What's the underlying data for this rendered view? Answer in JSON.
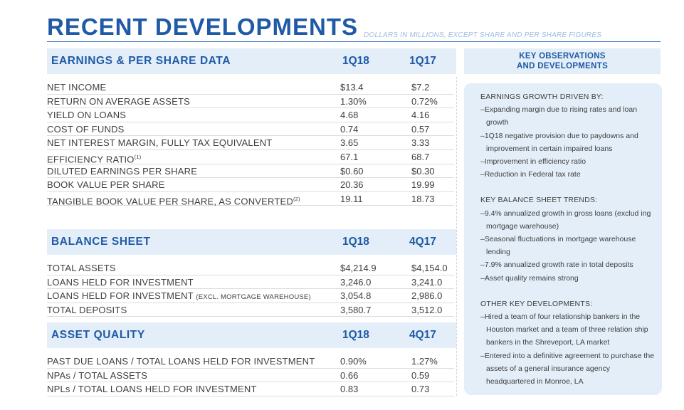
{
  "header": {
    "title": "RECENT DEVELOPMENTS",
    "subtitle": "DOLLARS IN MILLIONS, EXCEPT SHARE AND PER SHARE FIGURES"
  },
  "earnings": {
    "title": "EARNINGS & PER SHARE DATA",
    "col_a": "1Q18",
    "col_b": "1Q17",
    "rows": [
      {
        "label": "NET INCOME",
        "a": "$13.4",
        "b": "$7.2"
      },
      {
        "label": "RETURN ON AVERAGE ASSETS",
        "a": "1.30%",
        "b": "0.72%"
      },
      {
        "label": "YIELD ON LOANS",
        "a": "4.68",
        "b": "4.16"
      },
      {
        "label": "COST OF FUNDS",
        "a": "0.74",
        "b": "0.57"
      },
      {
        "label": "NET INTEREST MARGIN, FULLY TAX EQUIVALENT",
        "a": "3.65",
        "b": "3.33"
      },
      {
        "label": "EFFICIENCY RATIO",
        "sup": "(1)",
        "a": "67.1",
        "b": "68.7"
      },
      {
        "label": "DILUTED EARNINGS PER SHARE",
        "a": "$0.60",
        "b": "$0.30"
      },
      {
        "label": "BOOK VALUE PER SHARE",
        "a": "20.36",
        "b": "19.99"
      },
      {
        "label": "TANGIBLE BOOK VALUE PER SHARE, AS CONVERTED",
        "sup": "(2)",
        "a": "19.11",
        "b": "18.73"
      }
    ]
  },
  "balance": {
    "title": "BALANCE SHEET",
    "col_a": "1Q18",
    "col_b": "4Q17",
    "rows": [
      {
        "label": "TOTAL ASSETS",
        "a": "$4,214.9",
        "b": "$4,154.0"
      },
      {
        "label": "LOANS HELD FOR INVESTMENT",
        "a": "3,246.0",
        "b": "3,241.0"
      },
      {
        "label": "LOANS HELD FOR INVESTMENT",
        "small": "(EXCL. MORTGAGE WAREHOUSE)",
        "a": "3,054.8",
        "b": "2,986.0"
      },
      {
        "label": "TOTAL DEPOSITS",
        "a": "3,580.7",
        "b": "3,512.0"
      }
    ]
  },
  "quality": {
    "title": "ASSET QUALITY",
    "col_a": "1Q18",
    "col_b": "4Q17",
    "rows": [
      {
        "label": "PAST DUE LOANS / TOTAL LOANS HELD FOR INVESTMENT",
        "a": "0.90%",
        "b": "1.27%"
      },
      {
        "label": "NPAs / TOTAL ASSETS",
        "a": "0.66",
        "b": "0.59"
      },
      {
        "label": "NPLs / TOTAL LOANS HELD FOR INVESTMENT",
        "a": "0.83",
        "b": "0.73"
      }
    ]
  },
  "observations": {
    "title_line1": "KEY OBSERVATIONS",
    "title_line2": "AND DEVELOPMENTS",
    "sections": [
      {
        "heading": "EARNINGS GROWTH DRIVEN BY:",
        "items": [
          "–Expanding margin due to rising rates and loan growth",
          "–1Q18 negative provision due to paydowns and improvement in certain impaired loans",
          "–Improvement in efficiency ratio",
          "–Reduction in Federal tax rate"
        ]
      },
      {
        "heading": "KEY BALANCE SHEET TRENDS:",
        "items": [
          "–9.4% annualized growth in gross loans (exclud ing mortgage warehouse)",
          "–Seasonal fluctuations in mortgage warehouse lending",
          "–7.9% annualized growth rate in total deposits",
          "–Asset quality remains strong"
        ]
      },
      {
        "heading": "OTHER KEY DEVELOPMENTS:",
        "items": [
          "–Hired a team of four relationship bankers in the Houston market and a team of three relation ship bankers in the Shreveport, LA market",
          "–Entered into a definitive agreement to purchase the assets of a general insurance agency headquartered in Monroe, LA"
        ]
      }
    ]
  }
}
